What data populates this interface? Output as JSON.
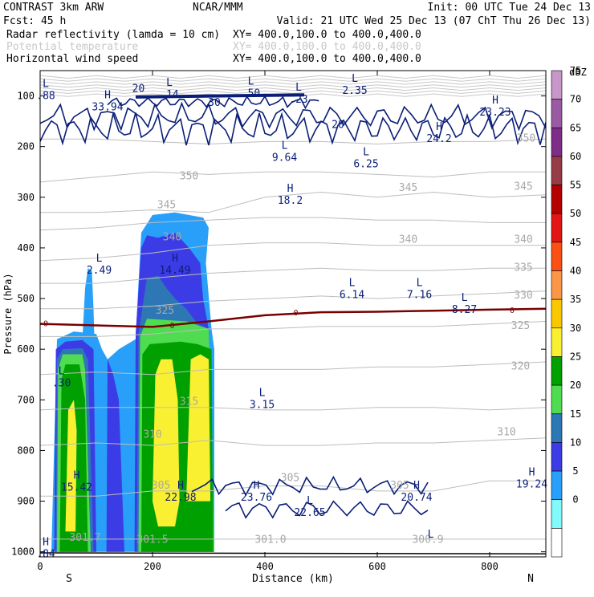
{
  "header": {
    "model": "CONTRAST  3km ARW",
    "center": "NCAR/MMM",
    "init": "Init: 00 UTC Tue 24 Dec 13",
    "fcst": "Fcst:    45 h",
    "valid": "Valid: 21 UTC Wed 25 Dec 13 (07 ChT Thu 26 Dec 13)"
  },
  "fields": [
    {
      "label": "Radar reflectivity (lamda = 10 cm)",
      "xy": "XY= 400.0,100.0 to 400.0,400.0",
      "color": "#000000"
    },
    {
      "label": "Potential temperature",
      "xy": "XY= 400.0,100.0 to 400.0,400.0",
      "color": "#c8c8c8"
    },
    {
      "label": "Horizontal wind speed",
      "xy": "XY= 400.0,100.0 to 400.0,400.0",
      "color": "#000000"
    }
  ],
  "chart_data": {
    "type": "heatmap",
    "subtype": "vertical cross-section (reflectivity shading, theta and wind contours)",
    "xlabel": "Distance (km)",
    "ylabel": "Pressure (hPa)",
    "xlim": [
      0,
      900
    ],
    "ylim": [
      1010,
      50
    ],
    "x_ticks": [
      "0",
      "200",
      "400",
      "600",
      "800"
    ],
    "x_tick_values": [
      0,
      200,
      400,
      600,
      800
    ],
    "y_ticks": [
      "100",
      "200",
      "300",
      "400",
      "500",
      "600",
      "700",
      "800",
      "900",
      "1000"
    ],
    "y_tick_values": [
      100,
      200,
      300,
      400,
      500,
      600,
      700,
      800,
      900,
      1000
    ],
    "left_end": "S",
    "right_end": "N",
    "colorbar": {
      "unit": "dBZ",
      "levels": [
        "75",
        "70",
        "65",
        "60",
        "55",
        "50",
        "45",
        "40",
        "35",
        "30",
        "25",
        "20",
        "15",
        "10",
        "5",
        "0"
      ],
      "level_values": [
        75,
        70,
        65,
        60,
        55,
        50,
        45,
        40,
        35,
        30,
        25,
        20,
        15,
        10,
        5,
        0
      ],
      "colors": [
        "#c896c8",
        "#9a5aa4",
        "#7e2e88",
        "#963c46",
        "#b40000",
        "#e21414",
        "#fa5014",
        "#fa9646",
        "#fac800",
        "#faf032",
        "#00a000",
        "#50dc50",
        "#2d78b4",
        "#3c3ce6",
        "#28a0fa",
        "#80fafa",
        "#ffffff"
      ]
    },
    "theta_labels": [
      {
        "text": "350",
        "x": 265,
        "p": 265
      },
      {
        "text": "350",
        "x": 865,
        "p": 190
      },
      {
        "text": "345",
        "x": 225,
        "p": 322
      },
      {
        "text": "345",
        "x": 655,
        "p": 288
      },
      {
        "text": "345",
        "x": 860,
        "p": 285
      },
      {
        "text": "340",
        "x": 235,
        "p": 385
      },
      {
        "text": "340",
        "x": 655,
        "p": 390
      },
      {
        "text": "340",
        "x": 860,
        "p": 390
      },
      {
        "text": "335",
        "x": 860,
        "p": 445
      },
      {
        "text": "330",
        "x": 860,
        "p": 500
      },
      {
        "text": "325",
        "x": 222,
        "p": 530
      },
      {
        "text": "325",
        "x": 855,
        "p": 560
      },
      {
        "text": "320",
        "x": 855,
        "p": 640
      },
      {
        "text": "315",
        "x": 265,
        "p": 710
      },
      {
        "text": "310",
        "x": 200,
        "p": 775
      },
      {
        "text": "310",
        "x": 830,
        "p": 770
      },
      {
        "text": "305",
        "x": 215,
        "p": 875
      },
      {
        "text": "305",
        "x": 445,
        "p": 860
      },
      {
        "text": "305",
        "x": 640,
        "p": 875
      },
      {
        "text": "301.7",
        "x": 80,
        "p": 978
      },
      {
        "text": "301.5",
        "x": 200,
        "p": 982
      },
      {
        "text": "301.0",
        "x": 410,
        "p": 982
      },
      {
        "text": "300.9",
        "x": 690,
        "p": 982
      }
    ],
    "wind_labels": [
      {
        "text": "20",
        "x": 175,
        "p": 92
      },
      {
        "text": "30",
        "x": 310,
        "p": 120
      },
      {
        "text": "20",
        "x": 530,
        "p": 163
      }
    ],
    "zero_dbz_labels": [
      {
        "text": "0",
        "x": 10,
        "p": 548
      },
      {
        "text": "0",
        "x": 235,
        "p": 552
      },
      {
        "text": "0",
        "x": 455,
        "p": 527
      },
      {
        "text": "0",
        "x": 840,
        "p": 522
      }
    ],
    "extrema": [
      {
        "type": "L",
        "value": ".88",
        "x": 10,
        "p": 95
      },
      {
        "type": "H",
        "value": "33.94",
        "x": 120,
        "p": 117
      },
      {
        "type": "L",
        "value": ".14",
        "x": 230,
        "p": 93
      },
      {
        "type": "L",
        "value": ".50",
        "x": 375,
        "p": 90
      },
      {
        "type": "L",
        "value": ".23",
        "x": 460,
        "p": 102
      },
      {
        "type": "L",
        "value": "2.35",
        "x": 560,
        "p": 85
      },
      {
        "type": "H",
        "value": "23.23",
        "x": 810,
        "p": 128
      },
      {
        "type": "H",
        "value": "24.2",
        "x": 710,
        "p": 180
      },
      {
        "type": "L",
        "value": "9.64",
        "x": 435,
        "p": 217
      },
      {
        "type": "L",
        "value": "6.25",
        "x": 580,
        "p": 230
      },
      {
        "type": "H",
        "value": "18.2",
        "x": 445,
        "p": 302
      },
      {
        "type": "L",
        "value": "2.49",
        "x": 105,
        "p": 440
      },
      {
        "type": "H",
        "value": "14.49",
        "x": 240,
        "p": 440
      },
      {
        "type": "L",
        "value": "6.14",
        "x": 555,
        "p": 488
      },
      {
        "type": "L",
        "value": "7.16",
        "x": 675,
        "p": 488
      },
      {
        "type": "L",
        "value": "8.27",
        "x": 755,
        "p": 517
      },
      {
        "type": "L",
        "value": ".30",
        "x": 38,
        "p": 662
      },
      {
        "type": "L",
        "value": "3.15",
        "x": 395,
        "p": 705
      },
      {
        "type": "H",
        "value": "15.42",
        "x": 65,
        "p": 868
      },
      {
        "type": "H",
        "value": "22.98",
        "x": 250,
        "p": 888
      },
      {
        "type": "H",
        "value": "23.76",
        "x": 385,
        "p": 888
      },
      {
        "type": "L",
        "value": "22.65",
        "x": 480,
        "p": 918
      },
      {
        "type": "H",
        "value": "20.74",
        "x": 670,
        "p": 888
      },
      {
        "type": "H",
        "value": "19.24",
        "x": 875,
        "p": 862
      },
      {
        "type": "H",
        "value": ".84",
        "x": 10,
        "p": 1000
      },
      {
        "type": "L",
        "value": "",
        "x": 695,
        "p": 985
      }
    ],
    "reflectivity_regions": [
      {
        "dbz": 5,
        "poly": [
          [
            20,
            1000
          ],
          [
            30,
            580
          ],
          [
            60,
            565
          ],
          [
            100,
            570
          ],
          [
            110,
            600
          ],
          [
            120,
            620
          ],
          [
            140,
            600
          ],
          [
            170,
            580
          ],
          [
            175,
            470
          ],
          [
            180,
            370
          ],
          [
            200,
            335
          ],
          [
            240,
            330
          ],
          [
            290,
            340
          ],
          [
            300,
            360
          ],
          [
            295,
            430
          ],
          [
            305,
            560
          ],
          [
            310,
            600
          ],
          [
            310,
            1000
          ]
        ]
      },
      {
        "dbz": 5,
        "poly": [
          [
            75,
            585
          ],
          [
            80,
            480
          ],
          [
            85,
            440
          ],
          [
            92,
            445
          ],
          [
            95,
            520
          ],
          [
            97,
            600
          ],
          [
            90,
            700
          ],
          [
            80,
            750
          ],
          [
            75,
            700
          ]
        ]
      },
      {
        "dbz": 10,
        "poly": [
          [
            25,
            1000
          ],
          [
            28,
            600
          ],
          [
            45,
            585
          ],
          [
            75,
            582
          ],
          [
            95,
            600
          ],
          [
            100,
            1000
          ]
        ]
      },
      {
        "dbz": 10,
        "poly": [
          [
            118,
            1000
          ],
          [
            120,
            620
          ],
          [
            130,
            650
          ],
          [
            140,
            700
          ],
          [
            150,
            1000
          ]
        ]
      },
      {
        "dbz": 10,
        "poly": [
          [
            168,
            1000
          ],
          [
            170,
            570
          ],
          [
            180,
            400
          ],
          [
            190,
            375
          ],
          [
            210,
            380
          ],
          [
            240,
            370
          ],
          [
            265,
            400
          ],
          [
            285,
            430
          ],
          [
            290,
            500
          ],
          [
            300,
            560
          ],
          [
            310,
            1000
          ]
        ]
      },
      {
        "dbz": 15,
        "poly": [
          [
            28,
            1000
          ],
          [
            30,
            620
          ],
          [
            40,
            600
          ],
          [
            75,
            598
          ],
          [
            85,
            620
          ],
          [
            95,
            1000
          ]
        ]
      },
      {
        "dbz": 15,
        "poly": [
          [
            172,
            1000
          ],
          [
            175,
            570
          ],
          [
            190,
            460
          ],
          [
            210,
            455
          ],
          [
            225,
            480
          ],
          [
            240,
            500
          ],
          [
            260,
            520
          ],
          [
            280,
            550
          ],
          [
            300,
            560
          ],
          [
            310,
            1000
          ]
        ]
      },
      {
        "dbz": 20,
        "poly": [
          [
            30,
            1000
          ],
          [
            32,
            640
          ],
          [
            40,
            610
          ],
          [
            75,
            610
          ],
          [
            80,
            640
          ],
          [
            90,
            1000
          ]
        ]
      },
      {
        "dbz": 20,
        "poly": [
          [
            175,
            1000
          ],
          [
            178,
            575
          ],
          [
            190,
            540
          ],
          [
            260,
            545
          ],
          [
            300,
            560
          ],
          [
            310,
            1000
          ]
        ]
      },
      {
        "dbz": 25,
        "poly": [
          [
            35,
            1000
          ],
          [
            38,
            660
          ],
          [
            45,
            630
          ],
          [
            70,
            630
          ],
          [
            80,
            700
          ],
          [
            85,
            1000
          ]
        ]
      },
      {
        "dbz": 25,
        "poly": [
          [
            180,
            1000
          ],
          [
            182,
            610
          ],
          [
            195,
            590
          ],
          [
            250,
            585
          ],
          [
            280,
            590
          ],
          [
            305,
            600
          ],
          [
            308,
            1000
          ]
        ]
      },
      {
        "dbz": 30,
        "poly": [
          [
            200,
            900
          ],
          [
            205,
            650
          ],
          [
            215,
            620
          ],
          [
            235,
            620
          ],
          [
            245,
            700
          ],
          [
            248,
            900
          ],
          [
            240,
            950
          ],
          [
            210,
            950
          ]
        ]
      },
      {
        "dbz": 30,
        "poly": [
          [
            260,
            900
          ],
          [
            268,
            620
          ],
          [
            285,
            610
          ],
          [
            300,
            620
          ],
          [
            303,
            900
          ]
        ]
      },
      {
        "dbz": 30,
        "poly": [
          [
            45,
            960
          ],
          [
            50,
            720
          ],
          [
            60,
            700
          ],
          [
            65,
            760
          ],
          [
            63,
            960
          ]
        ]
      }
    ]
  }
}
